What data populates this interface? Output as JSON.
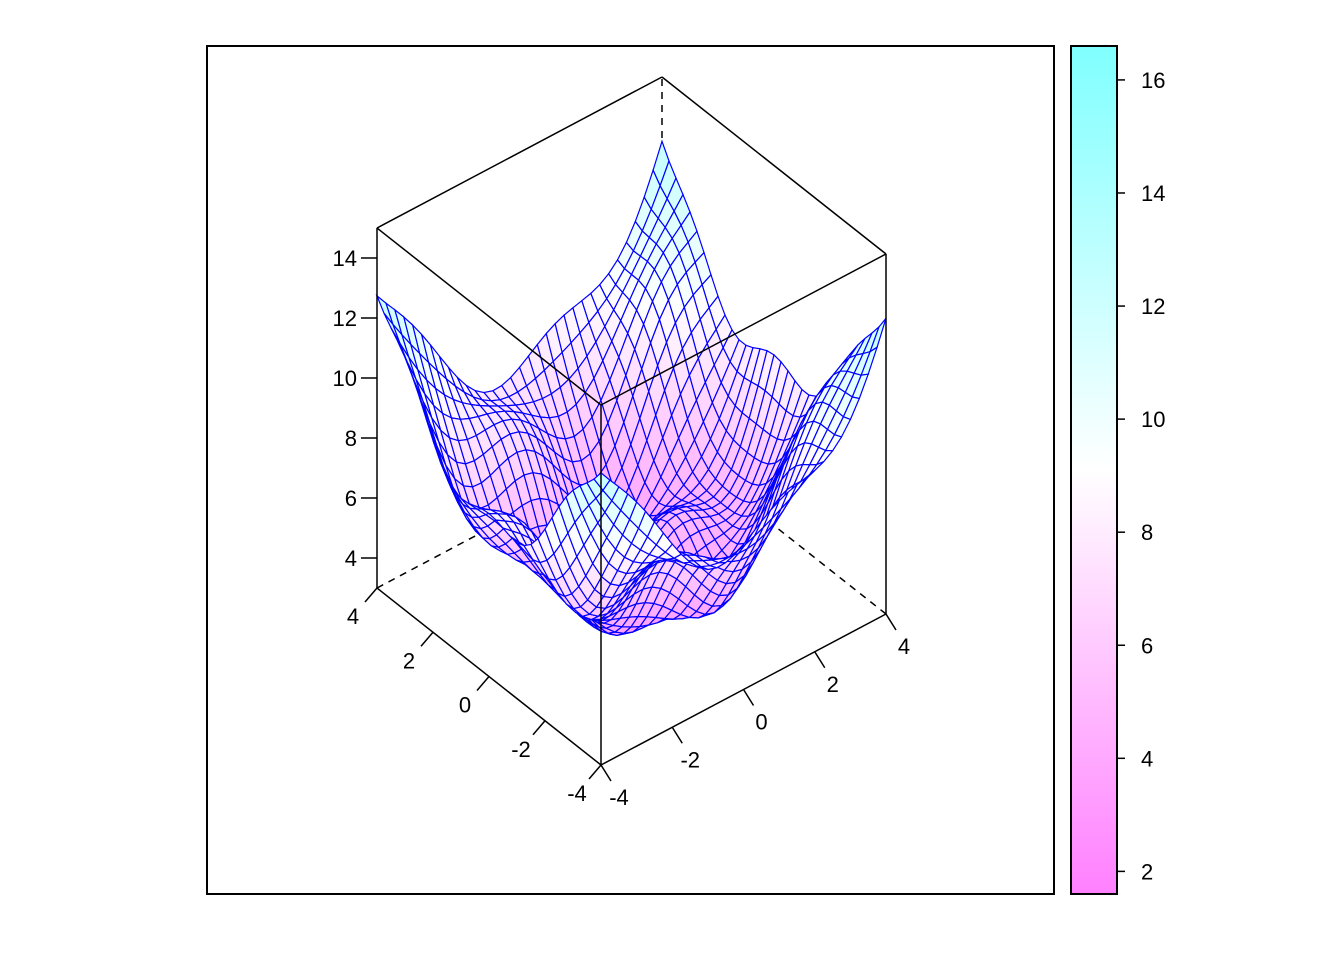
{
  "chart_data": {
    "type": "surface-3d",
    "title": "",
    "xlabel": "",
    "ylabel": "",
    "zlabel": "",
    "x_range": [
      -4,
      4
    ],
    "y_range": [
      -4,
      4
    ],
    "z_range": [
      3,
      15
    ],
    "x_ticks": [
      {
        "value": -4,
        "label": "-4"
      },
      {
        "value": -2,
        "label": "-2"
      },
      {
        "value": 0,
        "label": "0"
      },
      {
        "value": 2,
        "label": "2"
      },
      {
        "value": 4,
        "label": "4"
      }
    ],
    "y_ticks": [
      {
        "value": -4,
        "label": "-4"
      },
      {
        "value": -2,
        "label": "-2"
      },
      {
        "value": 0,
        "label": "0"
      },
      {
        "value": 2,
        "label": "2"
      },
      {
        "value": 4,
        "label": "4"
      }
    ],
    "z_ticks": [
      {
        "value": 4,
        "label": "4"
      },
      {
        "value": 6,
        "label": "6"
      },
      {
        "value": 8,
        "label": "8"
      },
      {
        "value": 10,
        "label": "10"
      },
      {
        "value": 12,
        "label": "12"
      },
      {
        "value": 14,
        "label": "14"
      }
    ],
    "surface": {
      "grid_x": [
        -4,
        -3.5,
        -3,
        -2.5,
        -2,
        -1.5,
        -1,
        -0.5,
        0,
        0.5,
        1,
        1.5,
        2,
        2.5,
        3,
        3.5,
        4
      ],
      "grid_y": [
        -4,
        -3.5,
        -3,
        -2.5,
        -2,
        -1.5,
        -1,
        -0.5,
        0,
        0.5,
        1,
        1.5,
        2,
        2.5,
        3,
        3.5,
        4
      ],
      "z_approx": "bowl-shaped surface z ≈ 3 + 0.6*(x^2+y^2)/2 with oscillating ripples; min ≈ 2 near center, max ≈ 16.5 at corner x=4,y=4"
    },
    "colorbar": {
      "range": [
        1.6,
        16.6
      ],
      "ticks": [
        {
          "value": 2,
          "label": "2"
        },
        {
          "value": 4,
          "label": "4"
        },
        {
          "value": 6,
          "label": "6"
        },
        {
          "value": 8,
          "label": "8"
        },
        {
          "value": 10,
          "label": "10"
        },
        {
          "value": 12,
          "label": "12"
        },
        {
          "value": 14,
          "label": "14"
        },
        {
          "value": 16,
          "label": "16"
        }
      ],
      "colors": {
        "low": "#ff80ff",
        "mid": "#ffffff",
        "high": "#80ffff"
      }
    },
    "wire_color": "#0000ff",
    "grid": false,
    "legend": "right colorbar"
  }
}
